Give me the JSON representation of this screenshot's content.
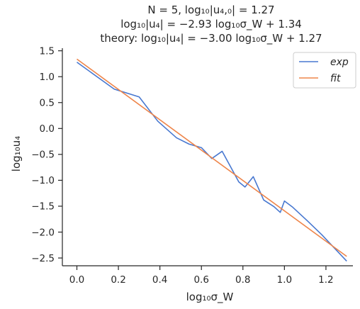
{
  "chart_data": {
    "type": "line",
    "title_lines": [
      "N = 5, log₁₀|u₄,₀| = 1.27",
      "log₁₀|u₄| = −2.93 log₁₀σ_W + 1.34",
      "theory: log₁₀|u₄| = −3.00 log₁₀σ_W + 1.27"
    ],
    "xlabel": "log₁₀σ_W",
    "ylabel": "log₁₀u₄",
    "xlim": [
      -0.07,
      1.33
    ],
    "ylim": [
      -2.65,
      1.55
    ],
    "xticks": [
      0.0,
      0.2,
      0.4,
      0.6,
      0.8,
      1.0,
      1.2
    ],
    "xtick_labels": [
      "0.0",
      "0.2",
      "0.4",
      "0.6",
      "0.8",
      "1.0",
      "1.2"
    ],
    "yticks": [
      1.5,
      1.0,
      0.5,
      0.0,
      -0.5,
      -1.0,
      -1.5,
      -2.0,
      -2.5
    ],
    "ytick_labels": [
      "1.5",
      "1.0",
      "0.5",
      "0.0",
      "−0.5",
      "−1.0",
      "−1.5",
      "−2.0",
      "−2.5"
    ],
    "grid": false,
    "legend_position": "top-right",
    "series": [
      {
        "name": "exp",
        "color": "#4878d0",
        "x": [
          0.0,
          0.18,
          0.3,
          0.39,
          0.48,
          0.54,
          0.6,
          0.65,
          0.7,
          0.78,
          0.81,
          0.85,
          0.9,
          0.95,
          0.98,
          1.0,
          1.04,
          1.11,
          1.18,
          1.3
        ],
        "y": [
          1.28,
          0.76,
          0.61,
          0.14,
          -0.18,
          -0.3,
          -0.37,
          -0.58,
          -0.44,
          -1.03,
          -1.13,
          -0.93,
          -1.38,
          -1.51,
          -1.62,
          -1.4,
          -1.52,
          -1.78,
          -2.05,
          -2.56
        ]
      },
      {
        "name": "fit",
        "color": "#ee854a",
        "x": [
          0.0,
          1.3
        ],
        "y": [
          1.34,
          -2.469
        ]
      }
    ]
  }
}
